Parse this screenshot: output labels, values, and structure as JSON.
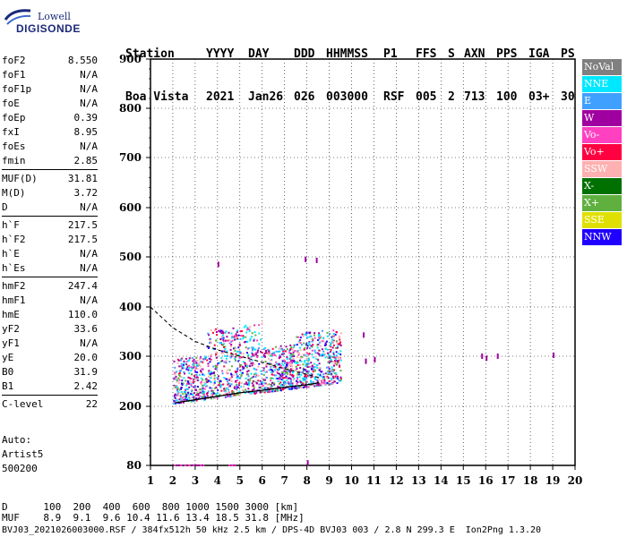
{
  "logo": {
    "line1": "Lowell",
    "line2": "DIGISONDE"
  },
  "header": {
    "row1": [
      "Station",
      "YYYY",
      "DAY",
      "DDD",
      "HHMMSS",
      "P1",
      "FFS",
      "S",
      "AXN",
      "PPS",
      "IGA",
      "PS"
    ],
    "row2": [
      "Boa Vista",
      "2021",
      "Jan26",
      "026",
      "003000",
      "RSF",
      "005",
      "2",
      "713",
      "100",
      "03+",
      "30"
    ]
  },
  "params": {
    "group1": [
      {
        "k": "foF2",
        "v": "8.550"
      },
      {
        "k": "foF1",
        "v": "N/A"
      },
      {
        "k": "foF1p",
        "v": "N/A"
      },
      {
        "k": "foE",
        "v": "N/A"
      },
      {
        "k": "foEp",
        "v": "0.39"
      },
      {
        "k": "fxI",
        "v": "8.95"
      },
      {
        "k": "foEs",
        "v": "N/A"
      },
      {
        "k": "fmin",
        "v": "2.85"
      }
    ],
    "group2": [
      {
        "k": "MUF(D)",
        "v": "31.81"
      },
      {
        "k": "M(D)",
        "v": "3.72"
      },
      {
        "k": "D",
        "v": "N/A"
      }
    ],
    "group3": [
      {
        "k": "h`F",
        "v": "217.5"
      },
      {
        "k": "h`F2",
        "v": "217.5"
      },
      {
        "k": "h`E",
        "v": "N/A"
      },
      {
        "k": "h`Es",
        "v": "N/A"
      }
    ],
    "group4": [
      {
        "k": "hmF2",
        "v": "247.4"
      },
      {
        "k": "hmF1",
        "v": "N/A"
      },
      {
        "k": "hmE",
        "v": "110.0"
      },
      {
        "k": "yF2",
        "v": "33.6"
      },
      {
        "k": "yF1",
        "v": "N/A"
      },
      {
        "k": "yE",
        "v": "20.0"
      },
      {
        "k": "B0",
        "v": "31.9"
      },
      {
        "k": "B1",
        "v": "2.42"
      }
    ],
    "group5": [
      {
        "k": "C-level",
        "v": "22"
      }
    ]
  },
  "auto": {
    "line1": "Auto:",
    "line2": "Artist5",
    "line3": "500200"
  },
  "legend": [
    {
      "label": "NoVal",
      "color": "#808080"
    },
    {
      "label": "NNE",
      "color": "#00e8ff"
    },
    {
      "label": "E",
      "color": "#3fa0ff"
    },
    {
      "label": "W",
      "color": "#a000a0"
    },
    {
      "label": "Vo-",
      "color": "#ff40c0"
    },
    {
      "label": "Vo+",
      "color": "#ff0040"
    },
    {
      "label": "SSW",
      "color": "#ffb0b0"
    },
    {
      "label": "X-",
      "color": "#007000"
    },
    {
      "label": "X+",
      "color": "#60b040"
    },
    {
      "label": "SSE",
      "color": "#e0e000"
    },
    {
      "label": "NNW",
      "color": "#2000ff"
    }
  ],
  "footer": {
    "line1": "D      100  200  400  600  800 1000 1500 3000 [km]",
    "line2": "MUF    8.9  9.1  9.6 10.4 11.6 13.4 18.5 31.8 [MHz]",
    "line3": "BVJ03_2021026003000.RSF / 384fx512h 50 kHz 2.5 km / DPS-4D BVJ03 003 / 2.8 N 299.3 E  Ion2Png 1.3.20"
  },
  "chart_data": {
    "type": "scatter",
    "xlim": [
      1,
      20
    ],
    "ylim": [
      80,
      900
    ],
    "xticks": [
      "1",
      "2",
      "3",
      "4",
      "5",
      "6",
      "7",
      "8",
      "9",
      "10",
      "11",
      "12",
      "13",
      "14",
      "15",
      "16",
      "17",
      "18",
      "19",
      "20"
    ],
    "yticks": [
      "80",
      "200",
      "300",
      "400",
      "500",
      "600",
      "700",
      "800",
      "900"
    ],
    "grid": true,
    "legend_position": "right",
    "trace_region": {
      "x_range": [
        2.0,
        9.5
      ],
      "virtual_height_range": [
        210,
        360
      ]
    },
    "isolated_points": [
      {
        "x": 4.0,
        "y": 485
      },
      {
        "x": 7.9,
        "y": 495
      },
      {
        "x": 8.4,
        "y": 493
      },
      {
        "x": 10.5,
        "y": 343
      },
      {
        "x": 8.0,
        "y": 85
      },
      {
        "x": 15.8,
        "y": 300
      },
      {
        "x": 16.0,
        "y": 296
      },
      {
        "x": 16.5,
        "y": 300
      },
      {
        "x": 19.0,
        "y": 302
      },
      {
        "x": 10.6,
        "y": 290
      },
      {
        "x": 11.0,
        "y": 293
      }
    ],
    "low_band": {
      "x_range": [
        2.0,
        4.8
      ],
      "y": 82
    },
    "profile_curve_solid": [
      [
        2.1,
        207
      ],
      [
        3,
        213
      ],
      [
        4,
        220
      ],
      [
        5,
        227
      ],
      [
        6,
        232
      ],
      [
        7,
        238
      ],
      [
        8,
        243
      ],
      [
        8.55,
        247
      ]
    ],
    "profile_curve_dashed": [
      [
        1.0,
        400
      ],
      [
        2,
        358
      ],
      [
        3,
        330
      ],
      [
        4,
        313
      ],
      [
        5,
        300
      ],
      [
        6,
        288
      ],
      [
        7,
        275
      ],
      [
        8,
        264
      ],
      [
        8.55,
        257
      ]
    ]
  }
}
